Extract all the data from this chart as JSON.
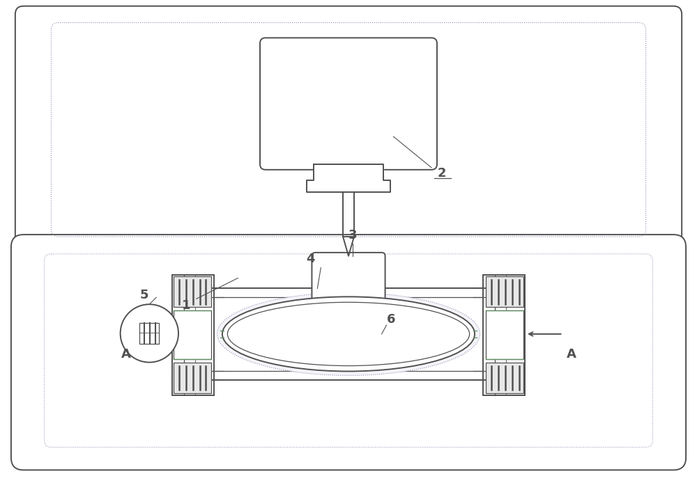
{
  "bg_color": "#ffffff",
  "line_color": "#505050",
  "dotted_color": "#9090b0",
  "green_color": "#5a9060",
  "label_color": "#000000",
  "fig_width": 10.0,
  "fig_height": 6.94,
  "dpi": 100
}
